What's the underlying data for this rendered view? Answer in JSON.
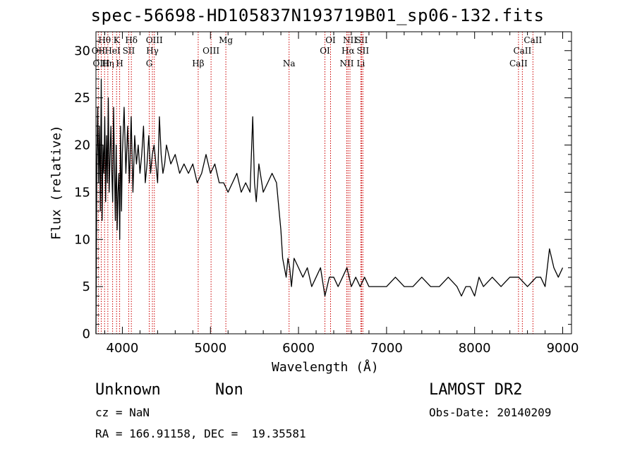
{
  "title": "spec-56698-HD105837N193719B01_sp06-132.fits",
  "info": {
    "class": "Unknown",
    "subclass": "Non",
    "cz": "cz = NaN",
    "radec": "RA = 166.91158, DEC =  19.35581",
    "survey": "LAMOST DR2",
    "obsdate": "Obs-Date: 20140209"
  },
  "chart_data": {
    "type": "line",
    "title": "spec-56698-HD105837N193719B01_sp06-132.fits",
    "xlabel": "Wavelength (Å)",
    "ylabel": "Flux (relative)",
    "xlim": [
      3700,
      9100
    ],
    "ylim": [
      0,
      32
    ],
    "xticks": [
      4000,
      5000,
      6000,
      7000,
      8000,
      9000
    ],
    "yticks": [
      0,
      5,
      10,
      15,
      20,
      25,
      30
    ],
    "line_color": "#000000",
    "marker_color": "#cc0000",
    "spectral_lines": [
      {
        "label": "Hθ",
        "wave": 3798,
        "row": 0
      },
      {
        "label": "OII",
        "wave": 3727,
        "row": 1
      },
      {
        "label": "OIII",
        "wave": 3760,
        "row": 2
      },
      {
        "label": "Hη",
        "wave": 3835,
        "row": 2
      },
      {
        "label": "K",
        "wave": 3934,
        "row": 0
      },
      {
        "label": "HeI",
        "wave": 3889,
        "row": 1
      },
      {
        "label": "H",
        "wave": 3969,
        "row": 2
      },
      {
        "label": "SII",
        "wave": 4072,
        "row": 1
      },
      {
        "label": "Hδ",
        "wave": 4102,
        "row": 0
      },
      {
        "label": "OIII",
        "wave": 4363,
        "row": 0
      },
      {
        "label": "Hγ",
        "wave": 4341,
        "row": 1
      },
      {
        "label": "G",
        "wave": 4305,
        "row": 2
      },
      {
        "label": "Mg",
        "wave": 5175,
        "row": 0
      },
      {
        "label": "OIII",
        "wave": 5007,
        "row": 1
      },
      {
        "label": "Hβ",
        "wave": 4861,
        "row": 2
      },
      {
        "label": "Na",
        "wave": 5893,
        "row": 2
      },
      {
        "label": "OI",
        "wave": 6364,
        "row": 0
      },
      {
        "label": "OI",
        "wave": 6300,
        "row": 1
      },
      {
        "label": "NII",
        "wave": 6584,
        "row": 0
      },
      {
        "label": "SII",
        "wave": 6717,
        "row": 0
      },
      {
        "label": "Hα",
        "wave": 6563,
        "row": 1
      },
      {
        "label": "SII",
        "wave": 6731,
        "row": 1
      },
      {
        "label": "NII",
        "wave": 6548,
        "row": 2
      },
      {
        "label": "Li",
        "wave": 6708,
        "row": 2
      },
      {
        "label": "CaII",
        "wave": 8662,
        "row": 0
      },
      {
        "label": "CaII",
        "wave": 8542,
        "row": 1
      },
      {
        "label": "CaII",
        "wave": 8498,
        "row": 2
      }
    ],
    "series": [
      {
        "x": [
          3700,
          3710,
          3720,
          3730,
          3740,
          3750,
          3760,
          3770,
          3780,
          3790,
          3800,
          3810,
          3820,
          3830,
          3840,
          3850,
          3860,
          3870,
          3880,
          3890,
          3900,
          3910,
          3920,
          3930,
          3940,
          3950,
          3960,
          3970,
          3980,
          3990,
          4000,
          4020,
          4040,
          4060,
          4080,
          4100,
          4120,
          4140,
          4160,
          4180,
          4200,
          4220,
          4240,
          4260,
          4280,
          4300,
          4320,
          4340,
          4360,
          4380,
          4400,
          4420,
          4440,
          4460,
          4480,
          4500,
          4550,
          4600,
          4650,
          4700,
          4750,
          4800,
          4850,
          4900,
          4950,
          5000,
          5050,
          5100,
          5150,
          5200,
          5250,
          5300,
          5350,
          5400,
          5450,
          5480,
          5500,
          5520,
          5550,
          5600,
          5650,
          5700,
          5750,
          5780,
          5800,
          5820,
          5840,
          5860,
          5880,
          5900,
          5920,
          5950,
          6000,
          6050,
          6100,
          6150,
          6200,
          6250,
          6300,
          6350,
          6400,
          6450,
          6500,
          6550,
          6600,
          6650,
          6700,
          6750,
          6800,
          6900,
          7000,
          7100,
          7200,
          7300,
          7400,
          7500,
          7600,
          7700,
          7800,
          7850,
          7900,
          7950,
          8000,
          8050,
          8100,
          8200,
          8300,
          8400,
          8500,
          8600,
          8700,
          8750,
          8800,
          8850,
          8900,
          8950,
          9000
        ],
        "y": [
          0,
          18,
          24,
          16,
          22,
          13,
          27,
          12,
          20,
          17,
          23,
          14,
          21,
          16,
          25,
          15,
          19,
          22,
          17,
          14,
          24,
          18,
          12,
          20,
          11,
          15,
          17,
          10,
          22,
          13,
          19,
          24,
          17,
          22,
          16,
          23,
          15,
          21,
          18,
          20,
          17,
          19,
          22,
          16,
          18,
          21,
          17,
          19,
          20,
          18,
          16,
          23,
          19,
          17,
          18,
          20,
          18,
          19,
          17,
          18,
          17,
          18,
          16,
          17,
          19,
          17,
          18,
          16,
          16,
          15,
          16,
          17,
          15,
          16,
          15,
          23,
          16,
          14,
          18,
          15,
          16,
          17,
          16,
          13,
          11,
          8,
          7,
          6,
          8,
          7,
          5,
          8,
          7,
          6,
          7,
          5,
          6,
          7,
          4,
          6,
          6,
          5,
          6,
          7,
          5,
          6,
          5,
          6,
          5,
          5,
          5,
          6,
          5,
          5,
          6,
          5,
          5,
          6,
          5,
          4,
          5,
          5,
          4,
          6,
          5,
          6,
          5,
          6,
          6,
          5,
          6,
          6,
          5,
          9,
          7,
          6,
          7
        ]
      }
    ]
  }
}
